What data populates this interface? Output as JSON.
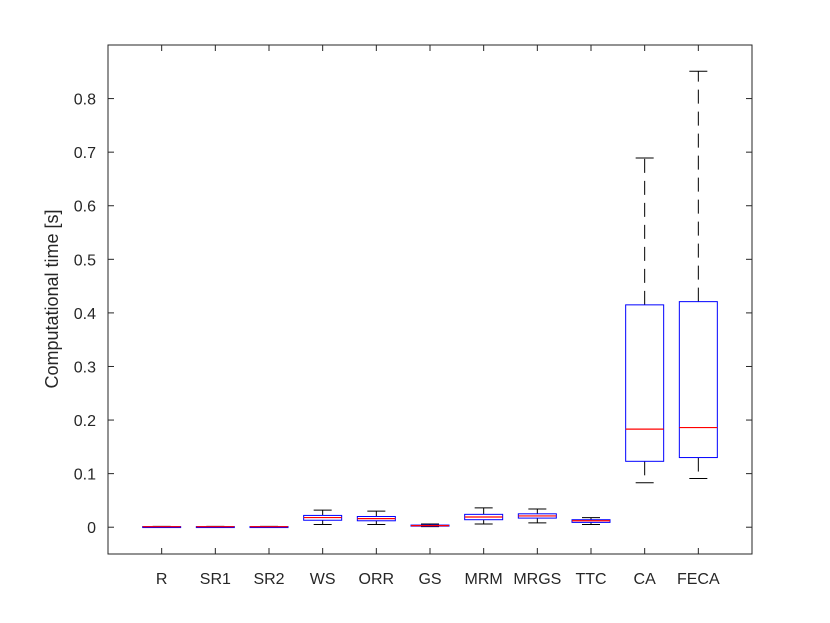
{
  "chart_data": {
    "type": "box",
    "title": "",
    "xlabel": "",
    "ylabel": "Computational time [s]",
    "ylim": [
      -0.05,
      0.9
    ],
    "yticks": [
      0,
      0.1,
      0.2,
      0.3,
      0.4,
      0.5,
      0.6,
      0.7,
      0.8
    ],
    "grid": false,
    "categories": [
      "R",
      "SR1",
      "SR2",
      "WS",
      "ORR",
      "GS",
      "MRM",
      "MRGS",
      "TTC",
      "CA",
      "FECA"
    ],
    "boxes": [
      {
        "category": "R",
        "min": 0.0005,
        "q1": 0.0008,
        "median": 0.001,
        "q3": 0.0012,
        "max": 0.0015
      },
      {
        "category": "SR1",
        "min": 0.0005,
        "q1": 0.0008,
        "median": 0.001,
        "q3": 0.0012,
        "max": 0.0015
      },
      {
        "category": "SR2",
        "min": 0.0005,
        "q1": 0.0008,
        "median": 0.001,
        "q3": 0.0012,
        "max": 0.0015
      },
      {
        "category": "WS",
        "min": 0.005,
        "q1": 0.013,
        "median": 0.018,
        "q3": 0.022,
        "max": 0.032
      },
      {
        "category": "ORR",
        "min": 0.005,
        "q1": 0.012,
        "median": 0.016,
        "q3": 0.02,
        "max": 0.03
      },
      {
        "category": "GS",
        "min": 0.001,
        "q1": 0.002,
        "median": 0.003,
        "q3": 0.004,
        "max": 0.006
      },
      {
        "category": "MRM",
        "min": 0.006,
        "q1": 0.014,
        "median": 0.019,
        "q3": 0.024,
        "max": 0.036
      },
      {
        "category": "MRGS",
        "min": 0.008,
        "q1": 0.017,
        "median": 0.021,
        "q3": 0.025,
        "max": 0.034
      },
      {
        "category": "TTC",
        "min": 0.005,
        "q1": 0.009,
        "median": 0.012,
        "q3": 0.014,
        "max": 0.018
      },
      {
        "category": "CA",
        "min": 0.083,
        "q1": 0.123,
        "median": 0.183,
        "q3": 0.415,
        "max": 0.689
      },
      {
        "category": "FECA",
        "min": 0.091,
        "q1": 0.13,
        "median": 0.186,
        "q3": 0.421,
        "max": 0.851
      }
    ],
    "colors": {
      "box": "#0000ff",
      "median": "#ff0000",
      "whisker": "#000000",
      "axis": "#262626"
    }
  }
}
